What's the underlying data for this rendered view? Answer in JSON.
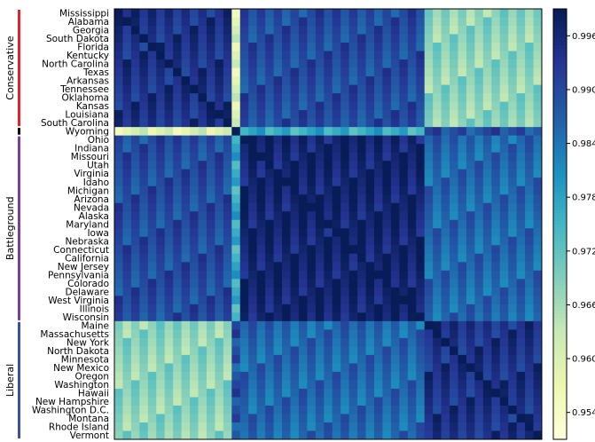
{
  "chart_data": {
    "type": "heatmap",
    "states": [
      "Mississippi",
      "Alabama",
      "Georgia",
      "South Dakota",
      "Florida",
      "Kentucky",
      "North Carolina",
      "Texas",
      "Arkansas",
      "Tennessee",
      "Oklahoma",
      "Kansas",
      "Louisiana",
      "South Carolina",
      "Wyoming",
      "Ohio",
      "Indiana",
      "Missouri",
      "Utah",
      "Virginia",
      "Idaho",
      "Michigan",
      "Arizona",
      "Nevada",
      "Alaska",
      "Maryland",
      "Iowa",
      "Nebraska",
      "Connecticut",
      "California",
      "New Jersey",
      "Pennsylvania",
      "Colorado",
      "Delaware",
      "West Virginia",
      "Illinois",
      "Wisconsin",
      "Maine",
      "Massachusetts",
      "New York",
      "North Dakota",
      "Minnesota",
      "New Mexico",
      "Oregon",
      "Washington",
      "Hawaii",
      "New Hampshire",
      "Washington D.C.",
      "Montana",
      "Rhode Island",
      "Vermont"
    ],
    "groups": [
      {
        "label": "Conservative",
        "color": "#e8202a",
        "start": 0,
        "end": 13
      },
      {
        "label": "",
        "color": "#000000",
        "start": 14,
        "end": 14
      },
      {
        "label": "Battleground",
        "color": "#7b3f98",
        "start": 15,
        "end": 36
      },
      {
        "label": "Liberal",
        "color": "#3b4fa3",
        "start": 37,
        "end": 50
      }
    ],
    "colorbar": {
      "min": 0.951,
      "max": 0.999,
      "ticks": [
        "0.954",
        "0.960",
        "0.966",
        "0.972",
        "0.978",
        "0.984",
        "0.990",
        "0.996"
      ],
      "colormap": "YlGnBu"
    },
    "grid": false
  }
}
